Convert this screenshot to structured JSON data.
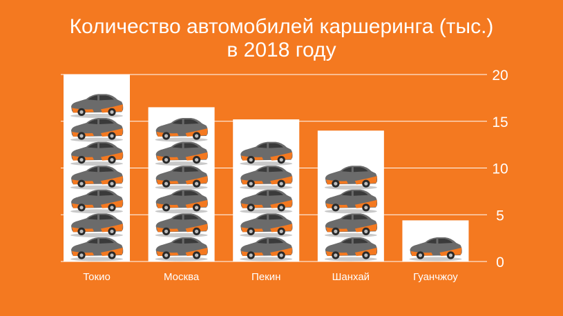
{
  "chart_data": {
    "type": "bar",
    "title_lines": [
      "Количество автомобилей каршеринга (тыс.)",
      "в  2018 году"
    ],
    "categories": [
      "Токио",
      "Москва",
      "Пекин",
      "Шанхай",
      "Гуанчжоу"
    ],
    "values": [
      20,
      16.5,
      15.2,
      14,
      4.4
    ],
    "car_icon_counts": [
      7,
      6,
      5,
      4,
      1
    ],
    "y_ticks": [
      "0",
      "5",
      "10",
      "15",
      "20"
    ],
    "ylim": [
      0,
      20
    ],
    "grid": true,
    "colors": {
      "background": "#F47920",
      "bar_fill": "#FFFFFF",
      "text": "#FFFFFF",
      "gridline": "#FFFFFF",
      "car_body": "#6B6B6B",
      "car_accent": "#F47920"
    }
  }
}
